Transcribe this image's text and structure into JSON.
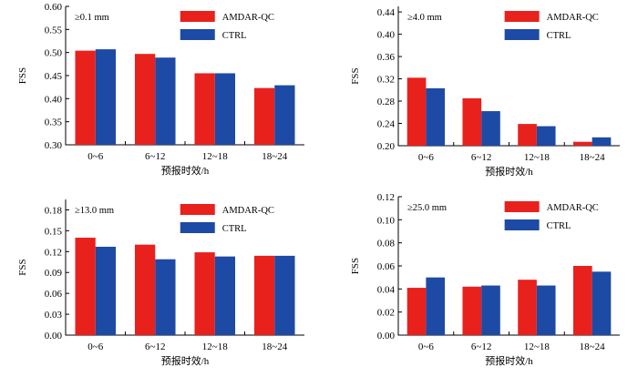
{
  "chart_data": [
    {
      "type": "bar",
      "panel_label": "≥0.1 mm",
      "categories": [
        "0~6",
        "6~12",
        "12~18",
        "18~24"
      ],
      "xlabel": "预报时效/h",
      "ylabel": "FSS",
      "ylim": [
        0.3,
        0.6
      ],
      "yticks": [
        "0.30",
        "0.35",
        "0.40",
        "0.45",
        "0.50",
        "0.55",
        "0.60"
      ],
      "series": [
        {
          "name": "AMDAR-QC",
          "color": "#e8211d",
          "values": [
            0.504,
            0.497,
            0.455,
            0.423
          ]
        },
        {
          "name": "CTRL",
          "color": "#1d4aa4",
          "values": [
            0.507,
            0.489,
            0.455,
            0.429
          ]
        }
      ],
      "grid": false,
      "legend": "top-center"
    },
    {
      "type": "bar",
      "panel_label": "≥4.0 mm",
      "categories": [
        "0~6",
        "6~12",
        "12~18",
        "18~24"
      ],
      "xlabel": "预报时效/h",
      "ylabel": "FSS",
      "ylim": [
        0.2,
        0.45
      ],
      "yticks": [
        "0.20",
        "0.24",
        "0.28",
        "0.32",
        "0.36",
        "0.40",
        "0.44"
      ],
      "series": [
        {
          "name": "AMDAR-QC",
          "color": "#e8211d",
          "values": [
            0.322,
            0.285,
            0.239,
            0.207
          ]
        },
        {
          "name": "CTRL",
          "color": "#1d4aa4",
          "values": [
            0.303,
            0.262,
            0.235,
            0.215
          ]
        }
      ],
      "grid": false,
      "legend": "top-center"
    },
    {
      "type": "bar",
      "panel_label": "≥13.0 mm",
      "categories": [
        "0~6",
        "6~12",
        "12~18",
        "18~24"
      ],
      "xlabel": "预报时效/h",
      "ylabel": "FSS",
      "ylim": [
        0.0,
        0.195
      ],
      "yticks": [
        "0.00",
        "0.03",
        "0.06",
        "0.09",
        "0.12",
        "0.15",
        "0.18"
      ],
      "series": [
        {
          "name": "AMDAR-QC",
          "color": "#e8211d",
          "values": [
            0.14,
            0.13,
            0.119,
            0.114
          ]
        },
        {
          "name": "CTRL",
          "color": "#1d4aa4",
          "values": [
            0.127,
            0.109,
            0.113,
            0.114
          ]
        }
      ],
      "grid": false,
      "legend": "top-center"
    },
    {
      "type": "bar",
      "panel_label": "≥25.0 mm",
      "categories": [
        "0~6",
        "6~12",
        "12~18",
        "18~24"
      ],
      "xlabel": "预报时效/h",
      "ylabel": "FSS",
      "ylim": [
        0.0,
        0.12
      ],
      "yticks": [
        "0.00",
        "0.02",
        "0.04",
        "0.06",
        "0.08",
        "0.10",
        "0.12"
      ],
      "series": [
        {
          "name": "AMDAR-QC",
          "color": "#e8211d",
          "values": [
            0.041,
            0.042,
            0.048,
            0.06
          ]
        },
        {
          "name": "CTRL",
          "color": "#1d4aa4",
          "values": [
            0.05,
            0.043,
            0.043,
            0.055
          ]
        }
      ],
      "grid": false,
      "legend": "top-center"
    }
  ]
}
